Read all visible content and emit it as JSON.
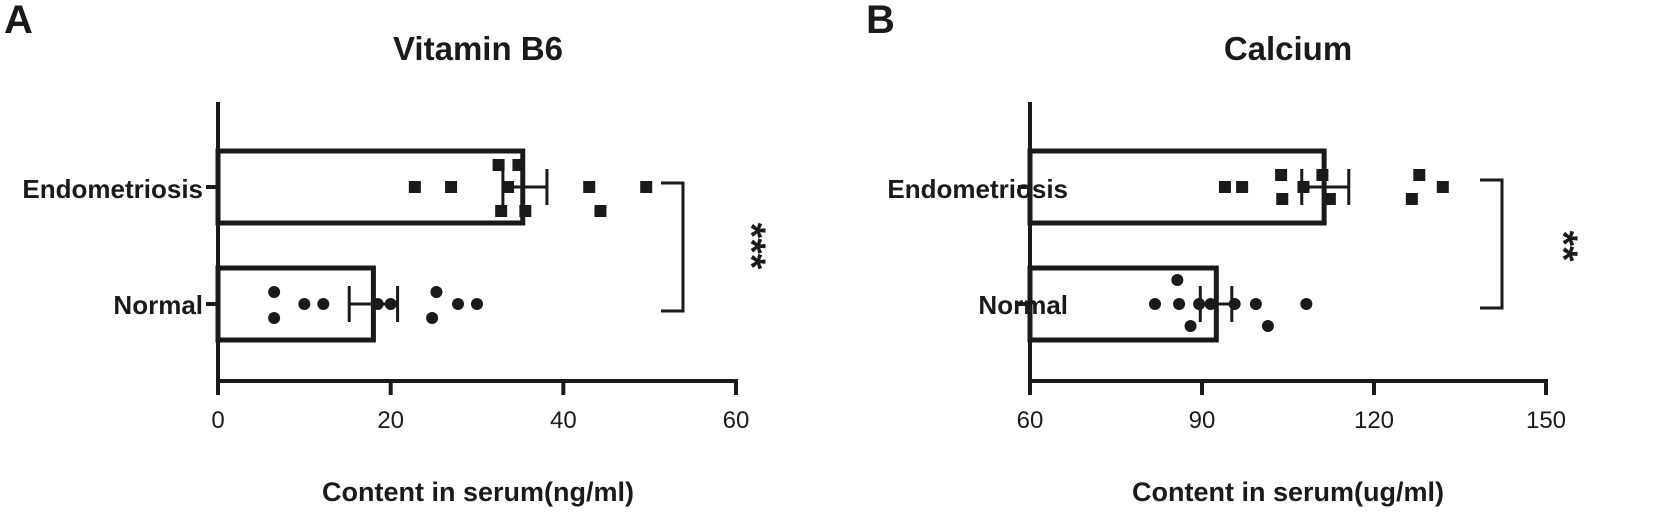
{
  "chart_data": [
    {
      "type": "bar",
      "orientation": "horizontal",
      "panel": "A",
      "title": "Vitamin B6",
      "xlabel": "Content in serum(ng/ml)",
      "ylabel": "",
      "xlim": [
        0,
        60
      ],
      "xticks": [
        "0",
        "20",
        "40",
        "60"
      ],
      "categories": [
        "Endometriosis",
        "Normal"
      ],
      "values": [
        35.3,
        18.0
      ],
      "error_low": [
        33.0,
        15.2
      ],
      "error_high": [
        38.1,
        20.8
      ],
      "points": {
        "Endometriosis": [
          22.8,
          27.0,
          32.5,
          34.8,
          33.6,
          32.8,
          35.6,
          43.0,
          44.3,
          49.6
        ],
        "Normal": [
          6.5,
          6.5,
          10.0,
          12.2,
          18.5,
          20.0,
          25.3,
          24.8,
          27.8,
          30.0
        ]
      },
      "point_markers": {
        "Endometriosis": "square",
        "Normal": "circle"
      },
      "significance": "***",
      "grid": false
    },
    {
      "type": "bar",
      "orientation": "horizontal",
      "panel": "B",
      "title": "Calcium",
      "xlabel": "Content in serum(ug/ml)",
      "ylabel": "",
      "xlim": [
        60,
        150
      ],
      "xticks": [
        "60",
        "90",
        "120",
        "150"
      ],
      "categories": [
        "Endometriosis",
        "Normal"
      ],
      "values": [
        111.3,
        92.5
      ],
      "error_low": [
        107.4,
        89.7
      ],
      "error_high": [
        115.6,
        95.2
      ],
      "points": {
        "Endometriosis": [
          94.0,
          97.0,
          103.8,
          104.0,
          107.7,
          111.0,
          112.3,
          126.6,
          127.9,
          132.0
        ],
        "Normal": [
          81.8,
          85.7,
          86.0,
          88.0,
          89.5,
          91.5,
          95.7,
          99.4,
          101.5,
          108.2
        ]
      },
      "point_markers": {
        "Endometriosis": "square",
        "Normal": "circle"
      },
      "significance": "**",
      "grid": false
    }
  ]
}
